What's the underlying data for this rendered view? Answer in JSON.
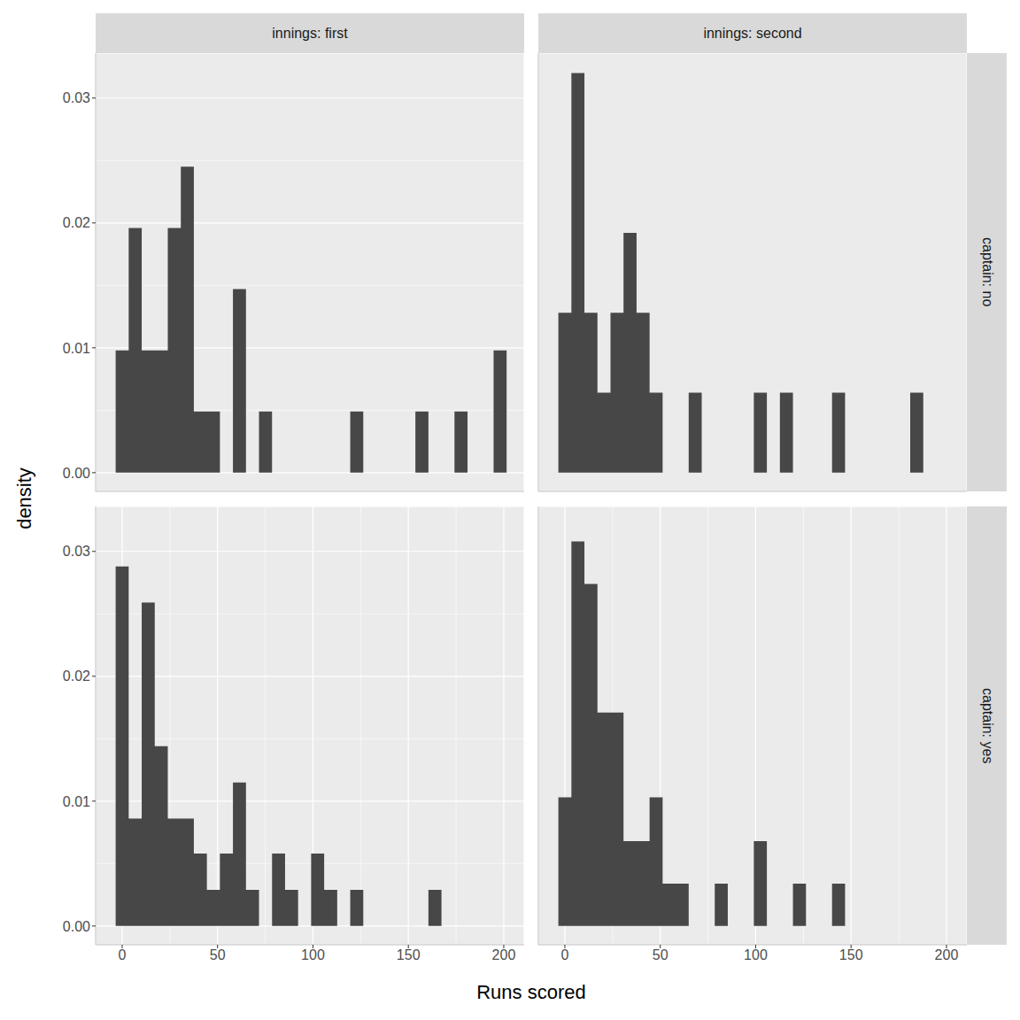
{
  "x_label": "Runs scored",
  "y_label": "density",
  "columns": [
    "innings: first",
    "innings: second"
  ],
  "rows": [
    "captain: no",
    "captain: yes"
  ],
  "chart_data": [
    {
      "type": "histogram",
      "color": "#474747",
      "grid": true,
      "tick_labels": "y",
      "bins": [
        -3.4,
        3.43,
        10.26,
        17.09,
        23.92,
        30.75,
        37.58,
        44.41,
        51.24,
        58.07,
        64.9,
        71.73,
        78.56,
        85.39,
        92.22,
        99.05,
        105.88,
        112.71,
        119.54,
        126.37,
        133.2,
        140.03,
        146.86,
        153.69,
        160.52,
        167.35,
        174.18,
        181.01,
        187.84,
        194.67,
        201.5
      ],
      "values": [
        0.0098,
        0.0196,
        0.0098,
        0.0098,
        0.0196,
        0.0245,
        0.0049,
        0.0049,
        0,
        0.0147,
        0,
        0.0049,
        0,
        0,
        0,
        0,
        0,
        0,
        0.0049,
        0,
        0,
        0,
        0,
        0.0049,
        0,
        0,
        0.0049,
        0,
        0,
        0.0098
      ],
      "xlim": [
        -13.9,
        210.7
      ],
      "ylim": [
        -0.0015,
        0.0336
      ],
      "xticks": [
        0,
        50,
        100,
        150,
        200
      ],
      "yticks": [
        {
          "value": 0,
          "label": "0.00"
        },
        {
          "value": 0.01,
          "label": "0.01"
        },
        {
          "value": 0.02,
          "label": "0.02"
        },
        {
          "value": 0.03,
          "label": "0.03"
        }
      ]
    },
    {
      "type": "histogram",
      "color": "#474747",
      "grid": true,
      "tick_labels": false,
      "bins": [
        -3.4,
        3.43,
        10.26,
        17.09,
        23.92,
        30.75,
        37.58,
        44.41,
        51.24,
        58.07,
        64.9,
        71.73,
        78.56,
        85.39,
        92.22,
        99.05,
        105.88,
        112.71,
        119.54,
        126.37,
        133.2,
        140.03,
        146.86,
        153.69,
        160.52,
        167.35,
        174.18,
        181.01,
        187.84,
        194.67,
        201.5
      ],
      "values": [
        0.0128,
        0.032,
        0.0128,
        0.0064,
        0.0128,
        0.0192,
        0.0128,
        0.0064,
        0,
        0,
        0.0064,
        0,
        0,
        0,
        0,
        0.0064,
        0,
        0.0064,
        0,
        0,
        0,
        0.0064,
        0,
        0,
        0,
        0,
        0,
        0.0064,
        0,
        0
      ],
      "xlim": [
        -13.9,
        210.7
      ],
      "ylim": [
        -0.0015,
        0.0336
      ],
      "xticks": [
        0,
        50,
        100,
        150,
        200
      ],
      "yticks": [
        {
          "value": 0,
          "label": "0.00"
        },
        {
          "value": 0.01,
          "label": "0.01"
        },
        {
          "value": 0.02,
          "label": "0.02"
        },
        {
          "value": 0.03,
          "label": "0.03"
        }
      ]
    },
    {
      "type": "histogram",
      "color": "#474747",
      "grid": true,
      "tick_labels": true,
      "bins": [
        -3.4,
        3.43,
        10.26,
        17.09,
        23.92,
        30.75,
        37.58,
        44.41,
        51.24,
        58.07,
        64.9,
        71.73,
        78.56,
        85.39,
        92.22,
        99.05,
        105.88,
        112.71,
        119.54,
        126.37,
        133.2,
        140.03,
        146.86,
        153.69,
        160.52,
        167.35,
        174.18,
        181.01,
        187.84,
        194.67,
        201.5
      ],
      "values": [
        0.0288,
        0.0086,
        0.0259,
        0.0144,
        0.0086,
        0.0086,
        0.0058,
        0.0029,
        0.0058,
        0.0115,
        0.0029,
        0,
        0.0058,
        0.0029,
        0,
        0.0058,
        0.0029,
        0,
        0.0029,
        0,
        0,
        0,
        0,
        0,
        0.0029,
        0,
        0,
        0,
        0,
        0
      ],
      "xlim": [
        -13.9,
        210.7
      ],
      "ylim": [
        -0.0015,
        0.0336
      ],
      "xticks": [
        0,
        50,
        100,
        150,
        200
      ],
      "yticks": [
        {
          "value": 0,
          "label": "0.00"
        },
        {
          "value": 0.01,
          "label": "0.01"
        },
        {
          "value": 0.02,
          "label": "0.02"
        },
        {
          "value": 0.03,
          "label": "0.03"
        }
      ]
    },
    {
      "type": "histogram",
      "color": "#474747",
      "grid": true,
      "tick_labels": "x",
      "bins": [
        -3.4,
        3.43,
        10.26,
        17.09,
        23.92,
        30.75,
        37.58,
        44.41,
        51.24,
        58.07,
        64.9,
        71.73,
        78.56,
        85.39,
        92.22,
        99.05,
        105.88,
        112.71,
        119.54,
        126.37,
        133.2,
        140.03,
        146.86,
        153.69,
        160.52,
        167.35,
        174.18,
        181.01,
        187.84,
        194.67,
        201.5
      ],
      "values": [
        0.0103,
        0.0308,
        0.0274,
        0.0171,
        0.0171,
        0.0068,
        0.0068,
        0.0103,
        0.0034,
        0.0034,
        0,
        0,
        0.0034,
        0,
        0,
        0.0068,
        0,
        0,
        0.0034,
        0,
        0,
        0.0034,
        0,
        0,
        0,
        0,
        0,
        0,
        0,
        0
      ],
      "xlim": [
        -13.9,
        210.7
      ],
      "ylim": [
        -0.0015,
        0.0336
      ],
      "xticks": [
        0,
        50,
        100,
        150,
        200
      ],
      "yticks": [
        {
          "value": 0,
          "label": "0.00"
        },
        {
          "value": 0.01,
          "label": "0.01"
        },
        {
          "value": 0.02,
          "label": "0.02"
        },
        {
          "value": 0.03,
          "label": "0.03"
        }
      ]
    }
  ]
}
